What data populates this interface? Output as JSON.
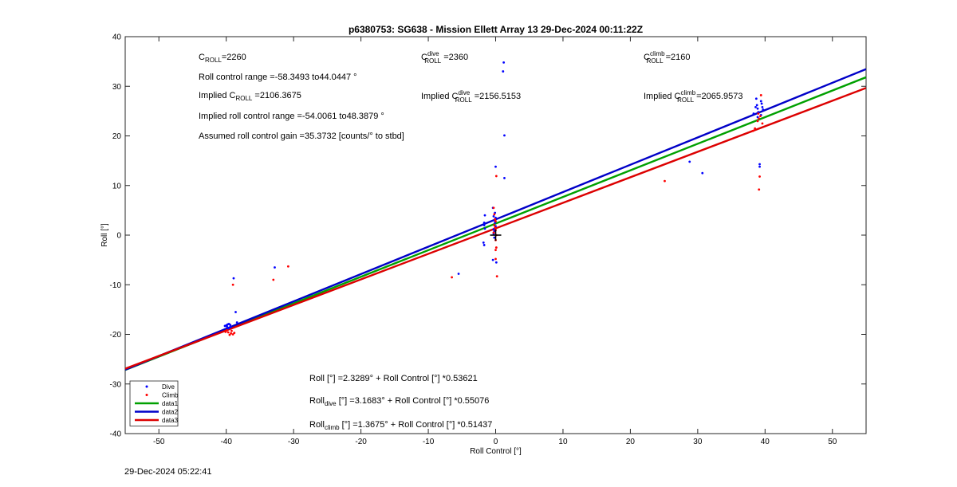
{
  "chart_data": {
    "type": "scatter",
    "title": "p6380753: SG638 - Mission Ellett Array 13 29-Dec-2024 00:11:22Z",
    "xlabel": "Roll Control [°]",
    "ylabel": "Roll [°]",
    "xlim": [
      -55,
      55
    ],
    "ylim": [
      -40,
      40
    ],
    "xticks": [
      -50,
      -40,
      -30,
      -20,
      -10,
      0,
      10,
      20,
      30,
      40,
      50
    ],
    "yticks": [
      -40,
      -30,
      -20,
      -10,
      0,
      10,
      20,
      30,
      40
    ],
    "grid": false,
    "legend_position": "bottom-left",
    "colors": {
      "dive": "#0000ff",
      "climb": "#ff0000",
      "data1": "#00a000",
      "data2": "#0000c8",
      "data3": "#dc0000"
    },
    "legend": [
      "Dive",
      "Climb",
      "data1",
      "data2",
      "data3"
    ],
    "series": [
      {
        "name": "Dive",
        "kind": "points",
        "points": [
          [
            -40.0,
            -18.2
          ],
          [
            -39.8,
            -18.0
          ],
          [
            -39.6,
            -17.9
          ],
          [
            -39.4,
            -18.1
          ],
          [
            -39.9,
            -18.4
          ],
          [
            -39.5,
            -18.6
          ],
          [
            -40.2,
            -18.3
          ],
          [
            -39.7,
            -18.8
          ],
          [
            -39.3,
            -18.5
          ],
          [
            -38.9,
            -8.7
          ],
          [
            -38.6,
            -15.5
          ],
          [
            -38.4,
            -17.6
          ],
          [
            -32.8,
            -6.5
          ],
          [
            -1.6,
            4.0
          ],
          [
            -1.7,
            2.0
          ],
          [
            -1.8,
            -1.5
          ],
          [
            -1.7,
            -2.0
          ],
          [
            -1.6,
            1.3
          ],
          [
            -1.7,
            2.5
          ],
          [
            -0.4,
            5.5
          ],
          [
            -0.3,
            3.8
          ],
          [
            -0.2,
            3.0
          ],
          [
            -0.1,
            2.5
          ],
          [
            0.0,
            1.8
          ],
          [
            -0.3,
            1.2
          ],
          [
            -0.2,
            0.8
          ],
          [
            -0.1,
            4.5
          ],
          [
            0.0,
            3.5
          ],
          [
            -0.3,
            0.3
          ],
          [
            -0.2,
            -0.5
          ],
          [
            0.0,
            13.8
          ],
          [
            0.1,
            -5.5
          ],
          [
            -0.4,
            -5.0
          ],
          [
            -5.5,
            -7.8
          ],
          [
            1.2,
            34.8
          ],
          [
            1.1,
            33.0
          ],
          [
            1.3,
            20.1
          ],
          [
            1.3,
            11.5
          ],
          [
            28.8,
            14.8
          ],
          [
            30.7,
            12.5
          ],
          [
            38.3,
            24.5
          ],
          [
            38.6,
            25.8
          ],
          [
            38.7,
            27.5
          ],
          [
            38.8,
            26.2
          ],
          [
            38.9,
            25.5
          ],
          [
            39.0,
            24.8
          ],
          [
            38.9,
            23.8
          ],
          [
            39.4,
            27.0
          ],
          [
            39.5,
            26.5
          ],
          [
            39.6,
            25.8
          ],
          [
            39.7,
            25.3
          ],
          [
            39.4,
            24.2
          ],
          [
            39.2,
            14.3
          ],
          [
            39.2,
            13.8
          ]
        ]
      },
      {
        "name": "Climb",
        "kind": "points",
        "points": [
          [
            -39.9,
            -19.2
          ],
          [
            -39.7,
            -19.6
          ],
          [
            -39.5,
            -20.1
          ],
          [
            -39.3,
            -19.8
          ],
          [
            -40.1,
            -19.5
          ],
          [
            -39.2,
            -19.3
          ],
          [
            -39.0,
            -20.0
          ],
          [
            -38.8,
            -19.7
          ],
          [
            -39.0,
            -10.0
          ],
          [
            -33.0,
            -9.0
          ],
          [
            -30.8,
            -6.3
          ],
          [
            -6.5,
            -8.5
          ],
          [
            -0.3,
            5.5
          ],
          [
            -0.2,
            4.2
          ],
          [
            -0.1,
            3.2
          ],
          [
            0.0,
            2.8
          ],
          [
            -0.2,
            2.0
          ],
          [
            -0.1,
            1.5
          ],
          [
            0.0,
            1.0
          ],
          [
            -0.3,
            0.5
          ],
          [
            0.1,
            0.0
          ],
          [
            0.0,
            -1.0
          ],
          [
            0.1,
            -2.5
          ],
          [
            0.0,
            -3.0
          ],
          [
            0.0,
            -4.8
          ],
          [
            0.2,
            -8.3
          ],
          [
            0.1,
            11.9
          ],
          [
            25.1,
            10.9
          ],
          [
            38.2,
            21.0
          ],
          [
            38.5,
            21.5
          ],
          [
            38.9,
            23.0
          ],
          [
            39.1,
            23.5
          ],
          [
            39.3,
            24.0
          ],
          [
            39.4,
            28.2
          ],
          [
            39.6,
            22.5
          ],
          [
            39.0,
            24.5
          ],
          [
            39.2,
            11.8
          ],
          [
            39.1,
            9.2
          ]
        ]
      },
      {
        "name": "data1",
        "kind": "fit",
        "intercept": 2.3289,
        "slope": 0.53621
      },
      {
        "name": "data2",
        "kind": "fit",
        "intercept": 3.1683,
        "slope": 0.55076
      },
      {
        "name": "data3",
        "kind": "fit",
        "intercept": 1.3675,
        "slope": 0.51437
      }
    ],
    "marker": {
      "shape": "plus",
      "x": 0.0,
      "y": 0.0,
      "color": "#000000"
    },
    "annotations": {
      "c_roll": {
        "main": "C",
        "sub": "ROLL",
        "value": "=2260"
      },
      "roll_range": "Roll control range =-58.3493 to44.0447 °",
      "implied_c_roll": {
        "prefix": "Implied C",
        "sub": "ROLL",
        "value": " =2106.3675"
      },
      "implied_range": "Implied roll control range =-54.0061 to48.3879 °",
      "gain": "Assumed roll control gain =35.3732 [counts/° to stbd]",
      "c_dive": {
        "main": "C",
        "sup": "dive",
        "sub": "ROLL",
        "value": " =2360"
      },
      "implied_c_dive": {
        "prefix": "Implied C",
        "sup": "dive",
        "sub": "ROLL",
        "value": " =2156.5153"
      },
      "c_climb": {
        "main": "C",
        "sup": "climb",
        "sub": "ROLL",
        "value": " =2160"
      },
      "implied_c_climb": {
        "prefix": "Implied C",
        "sup": "climb",
        "sub": "ROLL",
        "value": " =2065.9573"
      },
      "eq_all": "Roll [°] =2.3289° + Roll Control [°] *0.53621",
      "eq_dive": {
        "main": "Roll",
        "sub": "dive",
        "rest": " [°] =3.1683° + Roll Control [°] *0.55076"
      },
      "eq_climb": {
        "main": "Roll",
        "sub": "climb",
        "rest": " [°] =1.3675° + Roll Control [°] *0.51437"
      }
    }
  },
  "footer_timestamp": "29-Dec-2024 05:22:41"
}
